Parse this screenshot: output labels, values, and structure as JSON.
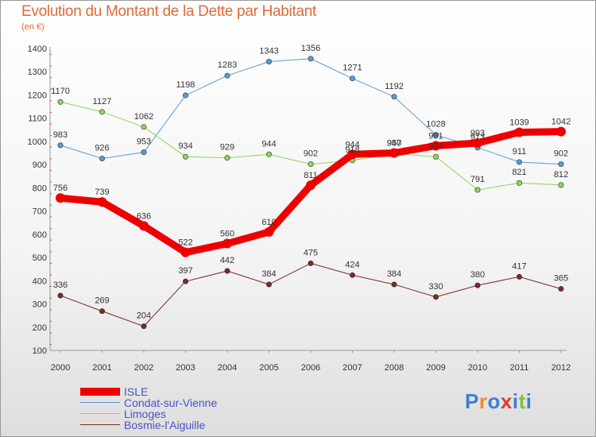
{
  "title": "Evolution du Montant de la Dette par Habitant",
  "unit_label": "(en €)",
  "logo_text": "Proxiti",
  "colors": {
    "title": "#e16a36",
    "isle": "#ee0000",
    "condat": "#5a9ad6",
    "limoges": "#8fd45a",
    "bosmie": "#7a2a2a",
    "legend_text": "#4a52c8"
  },
  "chart_data": {
    "type": "line",
    "title": "Evolution du Montant de la Dette par Habitant",
    "ylabel": "(en €)",
    "xlabel": "",
    "categories": [
      "2000",
      "2001",
      "2002",
      "2003",
      "2004",
      "2005",
      "2006",
      "2007",
      "2008",
      "2009",
      "2010",
      "2011",
      "2012"
    ],
    "ylim": [
      100,
      1400
    ],
    "yticks": [
      100,
      200,
      300,
      400,
      500,
      600,
      700,
      800,
      900,
      1000,
      1100,
      1200,
      1300,
      1400
    ],
    "grid": false,
    "legend_position": "bottom-left",
    "series": [
      {
        "name": "ISLE",
        "key": "isle",
        "values": [
          756,
          739,
          636,
          522,
          560,
          610,
          811,
          944,
          950,
          981,
          993,
          1039,
          1042
        ]
      },
      {
        "name": "Condat-sur-Vienne",
        "key": "condat",
        "values": [
          983,
          926,
          953,
          1198,
          1283,
          1343,
          1356,
          1271,
          1192,
          1028,
          973,
          911,
          902
        ]
      },
      {
        "name": "Limoges",
        "key": "limoges",
        "values": [
          1170,
          1127,
          1062,
          934,
          929,
          944,
          902,
          918,
          947,
          934,
          791,
          821,
          812
        ]
      },
      {
        "name": "Bosmie-l'Aiguille",
        "key": "bosmie",
        "values": [
          336,
          269,
          204,
          397,
          442,
          384,
          475,
          424,
          384,
          330,
          380,
          417,
          365
        ]
      }
    ]
  }
}
